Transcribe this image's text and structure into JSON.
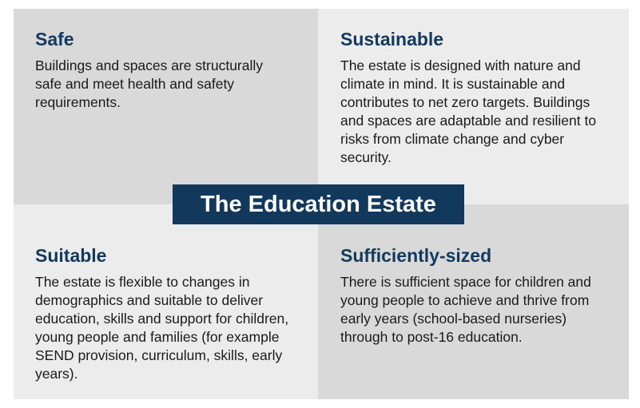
{
  "title": "The Education Estate",
  "colors": {
    "navy": "#12385c",
    "dark_panel": "#d9d9d9",
    "light_panel": "#ececec"
  },
  "quadrants": [
    {
      "heading": "Safe",
      "body": "Buildings and spaces are structurally safe and meet health and safety requirements."
    },
    {
      "heading": "Sustainable",
      "body": "The estate is designed with nature and climate in mind. It is sustainable and contributes to net zero targets. Buildings and spaces are adaptable and resilient to risks from climate change and cyber security."
    },
    {
      "heading": "Suitable",
      "body": "The estate is flexible to changes in demographics and suitable to deliver education, skills and support for children, young people and families (for example SEND provision, curriculum, skills, early years)."
    },
    {
      "heading": "Sufficiently-sized",
      "body": "There is sufficient space for children and young people to achieve and thrive from early years (school-based nurseries) through to post-16 education."
    }
  ]
}
